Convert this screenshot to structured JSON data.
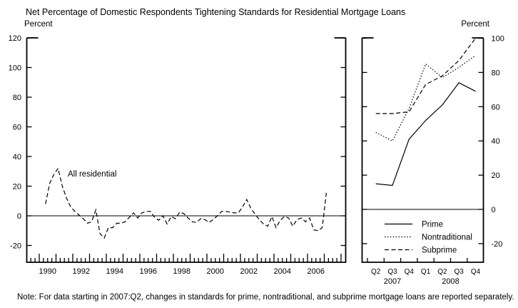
{
  "title": "Net Percentage of Domestic Respondents Tightening Standards for Residential Mortgage Loans",
  "axis_units": {
    "left": "Percent",
    "right": "Percent"
  },
  "note": "Note: For data starting in 2007:Q2, changes in standards for prime, nontraditional, and subprime mortgage loans are reported separately.",
  "chart_data": [
    {
      "type": "line",
      "panel": "left",
      "annotation": "All residential",
      "unit": "Percent",
      "frequency": "quarterly",
      "x_start": "1990:Q2",
      "x_end": "2007:Q1",
      "ylim": [
        -31,
        120
      ],
      "yticks": [
        120,
        100,
        80,
        60,
        40,
        20,
        0,
        -20
      ],
      "x_year_labels": [
        1990,
        1992,
        1994,
        1996,
        1998,
        2000,
        2002,
        2004,
        2006
      ],
      "grid": false,
      "zero_line": true,
      "series": [
        {
          "name": "All residential",
          "style": "dashed",
          "values": [
            8,
            22,
            28,
            32,
            20,
            12,
            6,
            3,
            0.5,
            -2,
            -5,
            -4,
            4,
            -12,
            -15,
            -8,
            -8,
            -5,
            -5,
            -4,
            -1,
            2,
            -1.5,
            2,
            3,
            3,
            -1,
            -3,
            0,
            -5.5,
            -0.5,
            -2,
            2.5,
            1.5,
            -1.5,
            -4,
            -4.5,
            -2,
            -2.5,
            -4.5,
            -2.5,
            0,
            3,
            3,
            2.5,
            2,
            2,
            6,
            11,
            5,
            1,
            -2.5,
            -5.5,
            -7,
            -0.5,
            -8,
            -3,
            -0.5,
            -1.5,
            -7,
            -2.5,
            -1.5,
            -4,
            -1.5,
            -9.5,
            -10,
            -8,
            15.5
          ]
        }
      ]
    },
    {
      "type": "line",
      "panel": "right",
      "unit": "Percent",
      "categories": [
        "Q2",
        "Q3",
        "Q4",
        "Q1",
        "Q2",
        "Q3",
        "Q4"
      ],
      "category_year_labels": [
        {
          "label": "2007",
          "center_index": 1
        },
        {
          "label": "2008",
          "center_index": 4.5
        }
      ],
      "ylim": [
        -31,
        102
      ],
      "yticks": [
        100,
        80,
        60,
        40,
        20,
        0,
        -20
      ],
      "grid": false,
      "zero_line": true,
      "legend_position": "bottom-inside",
      "series": [
        {
          "name": "Prime",
          "style": "solid",
          "values": [
            15,
            14,
            41,
            52,
            61,
            74,
            69
          ]
        },
        {
          "name": "Nontraditional",
          "style": "dotted",
          "values": [
            45,
            40,
            59,
            85,
            77,
            83,
            90
          ]
        },
        {
          "name": "Subprime",
          "style": "dashed",
          "values": [
            56,
            56,
            57,
            73,
            78,
            87,
            100
          ]
        }
      ]
    }
  ]
}
